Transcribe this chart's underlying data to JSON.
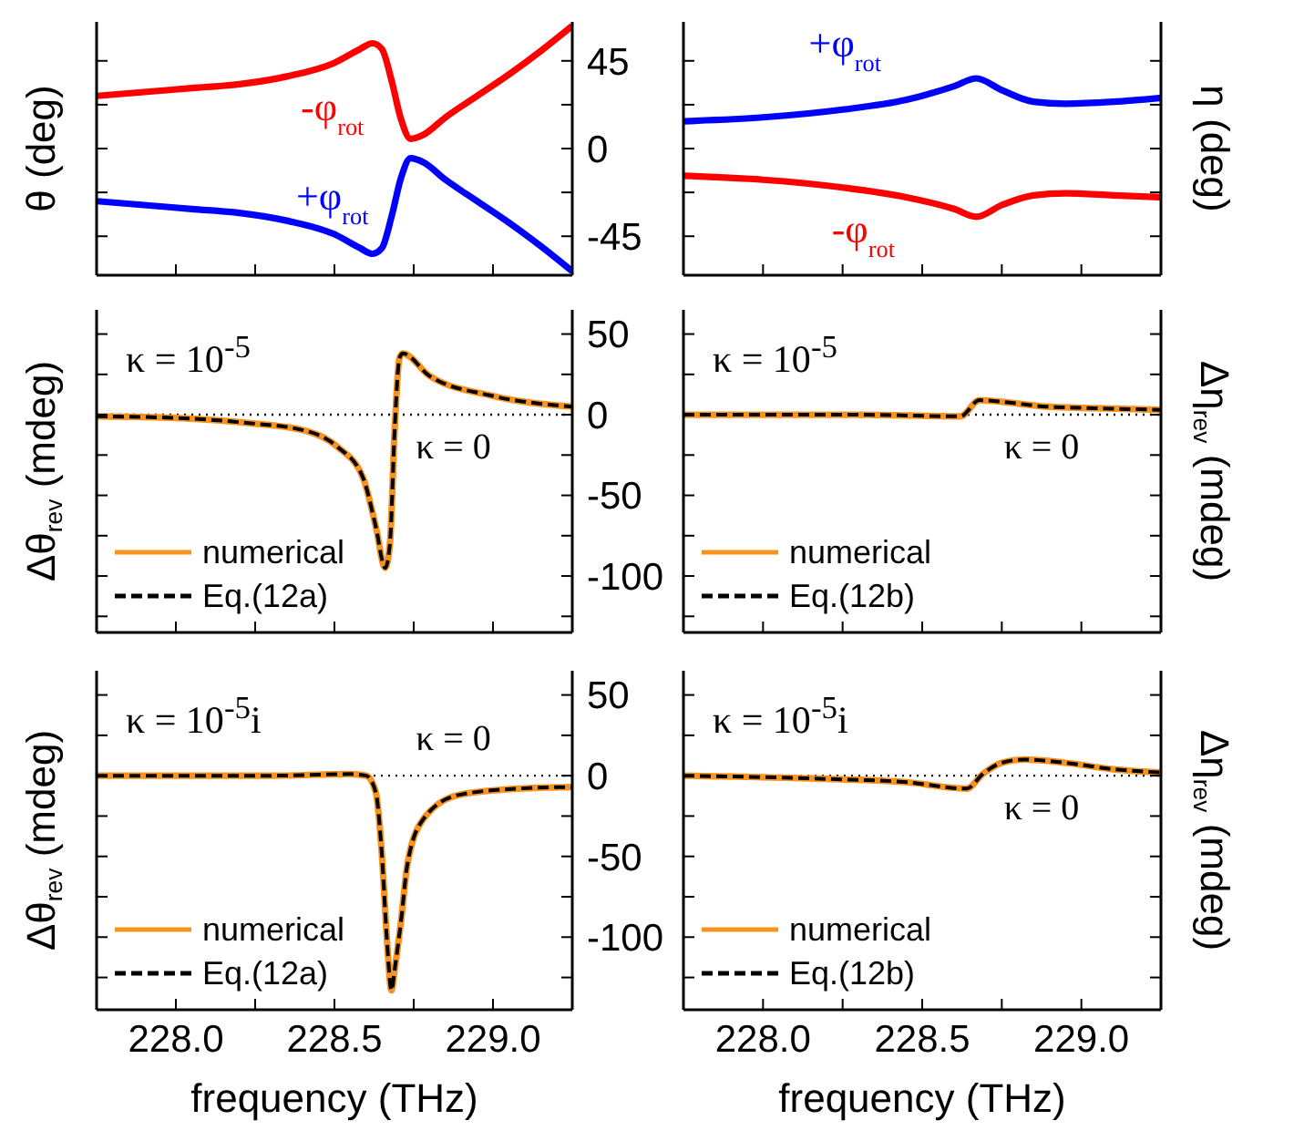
{
  "chart_data": [
    {
      "type": "line",
      "ylabel": "θ (deg)",
      "xlim": [
        227.75,
        229.25
      ],
      "xticks": [
        {
          "value": 228,
          "label": null
        },
        {
          "value": 228.25,
          "label": null
        },
        {
          "value": 228.5,
          "label": null
        },
        {
          "value": 228.75,
          "label": null
        },
        {
          "value": 229,
          "label": null
        }
      ],
      "ylim": [
        -65,
        65
      ],
      "yticks": [
        -45,
        {
          "value": -22.5,
          "label": null
        },
        0,
        {
          "value": 22.5,
          "label": null
        },
        45
      ],
      "tick_labels": "y",
      "x": [
        227.75,
        227.9,
        228.05,
        228.2,
        228.35,
        228.5,
        228.58,
        228.62,
        228.65,
        228.68,
        228.71,
        228.74,
        228.78,
        228.85,
        228.95,
        229.05,
        229.15,
        229.25
      ],
      "series": [
        {
          "name": "-φ$_{rot}$",
          "color": "#ff0000",
          "values": [
            27,
            29,
            31,
            33,
            37,
            44,
            51,
            54,
            51,
            35,
            15,
            5,
            7,
            16,
            27,
            38,
            50,
            63
          ]
        },
        {
          "name": "+φ$_{rot}$",
          "color": "#0000ff",
          "values": [
            -27,
            -29,
            -31,
            -33,
            -37,
            -44,
            -51,
            -54,
            -51,
            -35,
            -15,
            -5,
            -7,
            -16,
            -27,
            -38,
            -50,
            -63
          ]
        }
      ]
    },
    {
      "type": "line",
      "ylabel": "η (deg)",
      "xlim": [
        227.75,
        229.25
      ],
      "xticks": [
        {
          "value": 228,
          "label": null
        },
        {
          "value": 228.25,
          "label": null
        },
        {
          "value": 228.5,
          "label": null
        },
        {
          "value": 228.75,
          "label": null
        },
        {
          "value": 229,
          "label": null
        }
      ],
      "ylim": [
        -65,
        65
      ],
      "yticks": [
        -45,
        {
          "value": -22.5,
          "label": null
        },
        0,
        {
          "value": 22.5,
          "label": null
        },
        45
      ],
      "tick_labels": false,
      "x": [
        227.75,
        228.0,
        228.25,
        228.45,
        228.6,
        228.67,
        228.75,
        228.85,
        228.95,
        229.1,
        229.25
      ],
      "series": [
        {
          "name": "+φ$_{rot}$",
          "color": "#0000ff",
          "values": [
            14,
            16,
            20,
            25,
            32,
            36,
            30,
            24,
            23,
            24,
            26
          ]
        },
        {
          "name": "-φ$_{rot}$",
          "color": "#ff0000",
          "values": [
            -14,
            -16,
            -20,
            -25,
            -31,
            -35,
            -29,
            -24,
            -23,
            -24,
            -25
          ]
        }
      ]
    },
    {
      "type": "line",
      "ylabel": "Δθ$_{rev}$ (mdeg)",
      "xlim": [
        227.75,
        229.25
      ],
      "xticks": [
        {
          "value": 228,
          "label": null
        },
        {
          "value": 228.25,
          "label": null
        },
        {
          "value": 228.5,
          "label": null
        },
        {
          "value": 228.75,
          "label": null
        },
        {
          "value": 229,
          "label": null
        }
      ],
      "ylim": [
        -135,
        65
      ],
      "yticks": [
        {
          "value": -125,
          "label": null
        },
        -100,
        {
          "value": -75,
          "label": null
        },
        -50,
        {
          "value": -25,
          "label": null
        },
        0,
        {
          "value": 25,
          "label": null
        },
        50
      ],
      "tick_labels": "y",
      "legend": "bottom left",
      "annotations": [
        "κ = 10$^{-5}$"
      ],
      "ref_lines": [
        {
          "axis": "y",
          "value": 0,
          "label": "κ = 0",
          "line_style": "dotted",
          "color": "#000000"
        }
      ],
      "x": [
        227.75,
        228.0,
        228.22,
        228.41,
        228.51,
        228.59,
        228.63,
        228.66,
        228.675,
        228.69,
        228.705,
        228.715,
        228.8,
        228.99,
        229.25
      ],
      "series": [
        {
          "name": "numerical",
          "color": "#f7931e",
          "values": [
            -1,
            -2,
            -5,
            -10,
            -20,
            -39,
            -69,
            -95,
            -80,
            -9,
            35,
            38,
            24,
            12,
            5
          ]
        },
        {
          "name": "Eq.(12a)",
          "color": "#000000",
          "line_style": "dashed",
          "values": [
            -1,
            -2,
            -5,
            -10,
            -20,
            -39,
            -69,
            -95,
            -80,
            -9,
            35,
            38,
            24,
            12,
            5
          ]
        }
      ]
    },
    {
      "type": "line",
      "ylabel": "Δη$_{rev}$ (mdeg)",
      "xlim": [
        227.75,
        229.25
      ],
      "xticks": [
        {
          "value": 228,
          "label": null
        },
        {
          "value": 228.25,
          "label": null
        },
        {
          "value": 228.5,
          "label": null
        },
        {
          "value": 228.75,
          "label": null
        },
        {
          "value": 229,
          "label": null
        }
      ],
      "ylim": [
        -135,
        65
      ],
      "yticks": [
        {
          "value": -125,
          "label": null
        },
        -100,
        {
          "value": -75,
          "label": null
        },
        -50,
        {
          "value": -25,
          "label": null
        },
        0,
        {
          "value": 25,
          "label": null
        },
        50
      ],
      "tick_labels": false,
      "legend": "bottom left",
      "annotations": [
        "κ = 10$^{-5}$"
      ],
      "ref_lines": [
        {
          "axis": "y",
          "value": 0,
          "label": "κ = 0",
          "line_style": "dotted",
          "color": "#000000"
        }
      ],
      "x": [
        227.75,
        228.3,
        228.62,
        228.68,
        228.75,
        228.89,
        229.05,
        229.25
      ],
      "series": [
        {
          "name": "numerical",
          "color": "#f7931e",
          "values": [
            0,
            0,
            -1,
            9,
            8,
            5,
            4,
            3
          ]
        },
        {
          "name": "Eq.(12b)",
          "color": "#000000",
          "line_style": "dashed",
          "values": [
            0,
            0,
            -1,
            9,
            8,
            5,
            4,
            3
          ]
        }
      ]
    },
    {
      "type": "line",
      "xlabel": "frequency (THz)",
      "ylabel": "Δθ$_{rev}$ (mdeg)",
      "xlim": [
        227.75,
        229.25
      ],
      "xticks": [
        {
          "value": 228,
          "label": "228.0"
        },
        {
          "value": 228.25,
          "label": null
        },
        {
          "value": 228.5,
          "label": "228.5"
        },
        {
          "value": 228.75,
          "label": null
        },
        {
          "value": 229,
          "label": "229.0"
        }
      ],
      "ylim": [
        -145,
        65
      ],
      "yticks": [
        {
          "value": -125,
          "label": null
        },
        -100,
        {
          "value": -75,
          "label": null
        },
        -50,
        {
          "value": -25,
          "label": null
        },
        0,
        {
          "value": 25,
          "label": null
        },
        50
      ],
      "legend": "bottom left",
      "annotations": [
        "κ = 10$^{-5}$i"
      ],
      "ref_lines": [
        {
          "axis": "y",
          "value": 0,
          "label": "κ = 0",
          "line_style": "dotted",
          "color": "#000000"
        }
      ],
      "x": [
        227.75,
        228.3,
        228.55,
        228.6,
        228.63,
        228.65,
        228.665,
        228.68,
        228.69,
        228.71,
        228.73,
        228.78,
        228.89,
        229.08,
        229.25
      ],
      "series": [
        {
          "name": "numerical",
          "color": "#f7931e",
          "values": [
            0,
            0,
            1,
            0,
            -10,
            -50,
            -100,
            -133,
            -120,
            -90,
            -55,
            -27,
            -12,
            -8,
            -7
          ]
        },
        {
          "name": "Eq.(12a)",
          "color": "#000000",
          "line_style": "dashed",
          "values": [
            0,
            0,
            1,
            0,
            -10,
            -50,
            -100,
            -133,
            -120,
            -90,
            -55,
            -27,
            -12,
            -8,
            -7
          ]
        }
      ]
    },
    {
      "type": "line",
      "xlabel": "frequency (THz)",
      "ylabel": "Δη$_{rev}$ (mdeg)",
      "xlim": [
        227.75,
        229.25
      ],
      "xticks": [
        {
          "value": 228,
          "label": "228.0"
        },
        {
          "value": 228.25,
          "label": null
        },
        {
          "value": 228.5,
          "label": "228.5"
        },
        {
          "value": 228.75,
          "label": null
        },
        {
          "value": 229,
          "label": "229.0"
        }
      ],
      "ylim": [
        -145,
        65
      ],
      "yticks": [
        {
          "value": -125,
          "label": null
        },
        -100,
        {
          "value": -75,
          "label": null
        },
        -50,
        {
          "value": -25,
          "label": null
        },
        0,
        {
          "value": 25,
          "label": null
        },
        50
      ],
      "tick_labels": "x",
      "legend": "bottom left",
      "annotations": [
        "κ = 10$^{-5}$i"
      ],
      "ref_lines": [
        {
          "axis": "y",
          "value": 0,
          "label": "κ = 0",
          "line_style": "dotted",
          "color": "#000000"
        }
      ],
      "x": [
        227.75,
        228.2,
        228.45,
        228.64,
        228.69,
        228.75,
        228.82,
        228.95,
        229.1,
        229.25
      ],
      "series": [
        {
          "name": "numerical",
          "color": "#f7931e",
          "values": [
            0,
            -2,
            -4,
            -8,
            1,
            8,
            10,
            8,
            4,
            2
          ]
        },
        {
          "name": "Eq.(12b)",
          "color": "#000000",
          "line_style": "dashed",
          "values": [
            0,
            -2,
            -4,
            -8,
            1,
            8,
            10,
            8,
            4,
            2
          ]
        }
      ]
    }
  ]
}
